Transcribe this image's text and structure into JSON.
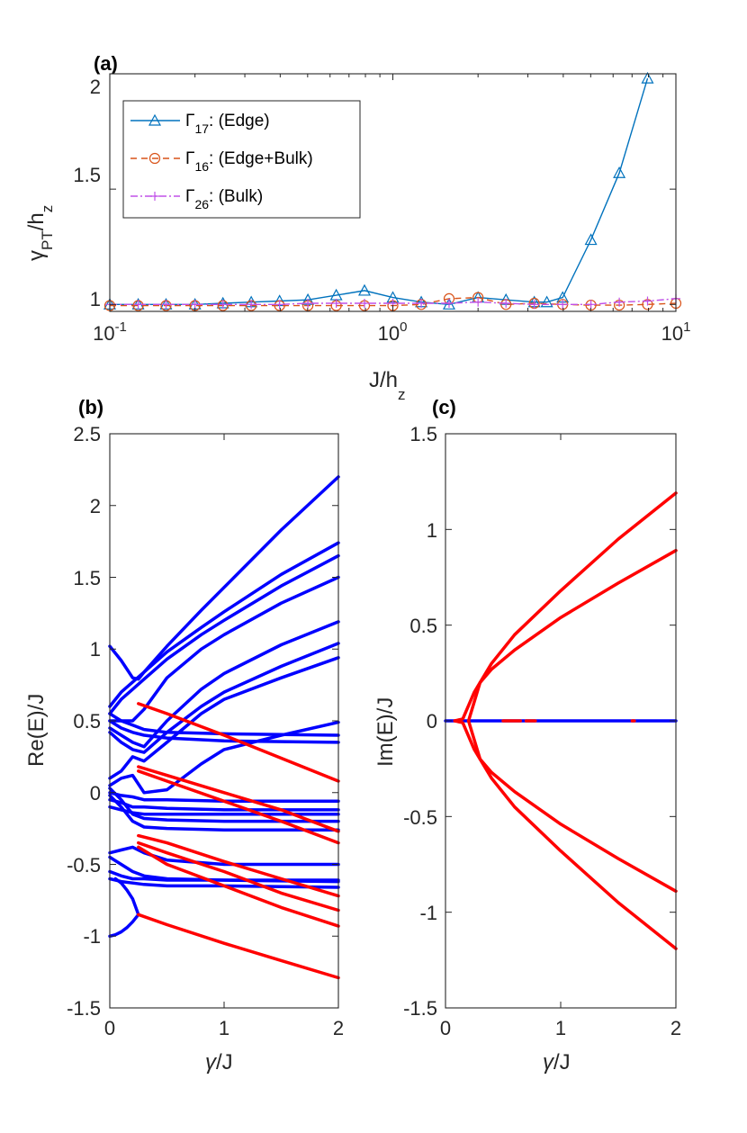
{
  "colors": {
    "blue_a": "#0072BD",
    "orange_a": "#D95319",
    "magenta_a": "#C050E8",
    "blue": "#0000FF",
    "red": "#FF0000",
    "axis": "#262626"
  },
  "chart_data": [
    {
      "panel": "(a)",
      "type": "line",
      "xscale": "log",
      "xlim": [
        0.1,
        10
      ],
      "ylim": [
        0.97,
        2.0
      ],
      "xticks": [
        0.1,
        1,
        10
      ],
      "xtick_labels": [
        {
          "base": "10",
          "exp": "-1"
        },
        {
          "base": "10",
          "exp": "0"
        },
        {
          "base": "10",
          "exp": "1"
        }
      ],
      "yticks": [
        1,
        1.5,
        2
      ],
      "ytick_labels": [
        "1",
        "1.5",
        "2"
      ],
      "xlabel": {
        "main": "J/h",
        "sub": "z"
      },
      "ylabel": {
        "greek": "γ",
        "sub": "PT",
        "main": "/h",
        "sub2": "z"
      },
      "legend_location": "top-left",
      "series": [
        {
          "name": "Γ17: (Edge)",
          "legend": {
            "greek": "Γ",
            "sub": "17",
            "text": ": (Edge)"
          },
          "color_key": "blue_a",
          "dash": "",
          "marker": "triangle",
          "x": [
            0.1,
            0.126,
            0.158,
            0.2,
            0.251,
            0.316,
            0.398,
            0.501,
            0.631,
            0.794,
            1.0,
            1.26,
            1.58,
            2.0,
            2.51,
            3.16,
            3.5,
            3.98,
            5.01,
            6.31,
            7.94
          ],
          "y": [
            1.0,
            1.0,
            1.0,
            1.0,
            1.005,
            1.01,
            1.015,
            1.02,
            1.04,
            1.06,
            1.03,
            1.01,
            1.0,
            1.03,
            1.02,
            1.01,
            1.01,
            1.03,
            1.28,
            1.57,
            1.98
          ]
        },
        {
          "name": "Γ16: (Edge+Bulk)",
          "legend": {
            "greek": "Γ",
            "sub": "16",
            "text": ": (Edge+Bulk)"
          },
          "color_key": "orange_a",
          "dash": "7,5",
          "marker": "circle",
          "x": [
            0.1,
            0.126,
            0.158,
            0.2,
            0.251,
            0.316,
            0.398,
            0.501,
            0.631,
            0.794,
            1.0,
            1.26,
            1.58,
            2.0,
            2.51,
            3.16,
            3.98,
            5.01,
            6.31,
            7.94,
            10
          ],
          "y": [
            0.995,
            0.995,
            0.995,
            0.995,
            0.995,
            0.995,
            0.995,
            0.995,
            0.995,
            0.995,
            0.995,
            1.0,
            1.025,
            1.03,
            1.0,
            1.005,
            1.0,
            0.997,
            0.997,
            1.0,
            1.005
          ]
        },
        {
          "name": "Γ26: (Bulk)",
          "legend": {
            "greek": "Γ",
            "sub": "26",
            "text": ": (Bulk)"
          },
          "color_key": "magenta_a",
          "dash": "8,3,2,3",
          "marker": "plus",
          "x": [
            0.1,
            0.126,
            0.158,
            0.2,
            0.251,
            0.316,
            0.398,
            0.501,
            0.631,
            0.794,
            1.0,
            1.26,
            1.58,
            2.0,
            2.51,
            3.16,
            3.98,
            5.01,
            6.31,
            7.94,
            10
          ],
          "y": [
            1.0,
            1.0,
            1.0,
            1.0,
            1.0,
            1.0,
            1.0,
            1.005,
            1.005,
            1.005,
            1.005,
            1.005,
            1.005,
            1.01,
            1.005,
            1.0,
            1.0,
            1.0,
            1.01,
            1.015,
            1.025
          ]
        }
      ]
    },
    {
      "panel": "(b)",
      "type": "line",
      "xlim": [
        0,
        2
      ],
      "ylim": [
        -1.5,
        2.5
      ],
      "xticks": [
        0,
        1,
        2
      ],
      "xtick_labels": [
        "0",
        "1",
        "2"
      ],
      "yticks": [
        -1.5,
        -1,
        -0.5,
        0,
        0.5,
        1,
        1.5,
        2,
        2.5
      ],
      "ytick_labels": [
        "-1.5",
        "-1",
        "-0.5",
        "0",
        "0.5",
        "1",
        "1.5",
        "2",
        "2.5"
      ],
      "xlabel": {
        "greek": "γ",
        "main": "/J"
      },
      "ylabel": "Re(E)/J",
      "series": [
        {
          "color_key": "blue",
          "x": [
            0,
            0.05,
            0.1,
            0.2,
            0.25,
            0.3,
            0.5,
            0.8,
            1.0,
            1.5,
            2.0
          ],
          "y": [
            1.02,
            0.97,
            0.92,
            0.8,
            0.79,
            0.84,
            1.02,
            1.27,
            1.43,
            1.83,
            2.2
          ]
        },
        {
          "color_key": "blue",
          "x": [
            0,
            0.1,
            0.2,
            0.3,
            0.5,
            0.8,
            1.0,
            1.5,
            2.0
          ],
          "y": [
            0.6,
            0.7,
            0.77,
            0.84,
            0.98,
            1.15,
            1.26,
            1.52,
            1.74
          ]
        },
        {
          "color_key": "blue",
          "x": [
            0,
            0.1,
            0.2,
            0.3,
            0.5,
            0.8,
            1.0,
            1.5,
            2.0
          ],
          "y": [
            0.55,
            0.65,
            0.72,
            0.79,
            0.93,
            1.1,
            1.2,
            1.44,
            1.65
          ]
        },
        {
          "color_key": "blue",
          "x": [
            0,
            0.1,
            0.2,
            0.3,
            0.5,
            0.8,
            1.0,
            1.5,
            2.0
          ],
          "y": [
            0.5,
            0.5,
            0.5,
            0.58,
            0.8,
            1.0,
            1.1,
            1.32,
            1.5
          ]
        },
        {
          "color_key": "blue",
          "x": [
            0,
            0.1,
            0.2,
            0.3,
            0.5,
            0.8,
            1.0,
            1.5,
            2.0
          ],
          "y": [
            0.45,
            0.4,
            0.35,
            0.32,
            0.5,
            0.72,
            0.83,
            1.03,
            1.19
          ]
        },
        {
          "color_key": "blue",
          "x": [
            0,
            0.1,
            0.2,
            0.3,
            0.5,
            0.8,
            1.0,
            1.5,
            2.0
          ],
          "y": [
            0.42,
            0.35,
            0.3,
            0.28,
            0.42,
            0.6,
            0.7,
            0.88,
            1.04
          ]
        },
        {
          "color_key": "blue",
          "x": [
            0,
            0.1,
            0.2,
            0.3,
            0.5,
            0.8,
            1.0,
            1.5,
            2.0
          ],
          "y": [
            0.1,
            0.15,
            0.25,
            0.22,
            0.35,
            0.55,
            0.65,
            0.8,
            0.94
          ]
        },
        {
          "color_key": "blue",
          "x": [
            0,
            0.1,
            0.2,
            0.3,
            0.5,
            0.8,
            1.0,
            1.5,
            2.0
          ],
          "y": [
            0.05,
            0.1,
            0.12,
            0.0,
            0.02,
            0.2,
            0.3,
            0.4,
            0.49
          ]
        },
        {
          "color_key": "blue",
          "x": [
            0,
            0.1,
            0.2,
            0.3,
            0.5,
            1.0,
            2.0
          ],
          "y": [
            0.55,
            0.5,
            0.47,
            0.44,
            0.42,
            0.41,
            0.4
          ]
        },
        {
          "color_key": "blue",
          "x": [
            0,
            0.1,
            0.2,
            0.3,
            0.5,
            1.0,
            2.0
          ],
          "y": [
            0.5,
            0.45,
            0.42,
            0.4,
            0.38,
            0.36,
            0.35
          ]
        },
        {
          "color_key": "blue",
          "x": [
            0,
            0.1,
            0.2,
            0.3,
            0.5,
            1.0,
            2.0
          ],
          "y": [
            0.0,
            -0.02,
            -0.03,
            -0.05,
            -0.05,
            -0.06,
            -0.06
          ]
        },
        {
          "color_key": "blue",
          "x": [
            0,
            0.1,
            0.2,
            0.3,
            0.5,
            1.0,
            2.0
          ],
          "y": [
            -0.05,
            -0.07,
            -0.1,
            -0.1,
            -0.11,
            -0.12,
            -0.12
          ]
        },
        {
          "color_key": "blue",
          "x": [
            0,
            0.1,
            0.2,
            0.3,
            0.5,
            1.0,
            2.0
          ],
          "y": [
            -0.1,
            -0.12,
            -0.14,
            -0.15,
            -0.15,
            -0.15,
            -0.15
          ]
        },
        {
          "color_key": "blue",
          "x": [
            0,
            0.1,
            0.2,
            0.3,
            0.5,
            1.0,
            2.0
          ],
          "y": [
            0.03,
            -0.05,
            -0.15,
            -0.18,
            -0.19,
            -0.2,
            -0.2
          ]
        },
        {
          "color_key": "blue",
          "x": [
            0,
            0.1,
            0.2,
            0.3,
            0.5,
            1.0,
            2.0
          ],
          "y": [
            -0.02,
            -0.1,
            -0.2,
            -0.24,
            -0.25,
            -0.26,
            -0.26
          ]
        },
        {
          "color_key": "blue",
          "x": [
            0,
            0.1,
            0.2,
            0.3,
            0.5,
            1.0,
            2.0
          ],
          "y": [
            -0.42,
            -0.4,
            -0.38,
            -0.42,
            -0.47,
            -0.5,
            -0.5
          ]
        },
        {
          "color_key": "blue",
          "x": [
            0,
            0.1,
            0.2,
            0.3,
            0.5,
            1.0,
            2.0
          ],
          "y": [
            -0.45,
            -0.5,
            -0.55,
            -0.58,
            -0.6,
            -0.61,
            -0.62
          ]
        },
        {
          "color_key": "blue",
          "x": [
            0,
            0.1,
            0.2,
            0.3,
            0.5,
            1.0,
            2.0
          ],
          "y": [
            -0.55,
            -0.58,
            -0.6,
            -0.6,
            -0.61,
            -0.61,
            -0.61
          ]
        },
        {
          "color_key": "blue",
          "x": [
            0,
            0.1,
            0.2,
            0.3,
            0.5,
            1.0,
            2.0
          ],
          "y": [
            -0.6,
            -0.62,
            -0.63,
            -0.64,
            -0.65,
            -0.65,
            -0.66
          ]
        },
        {
          "color_key": "blue",
          "x": [
            0,
            0.05,
            0.1,
            0.15,
            0.2,
            0.25
          ],
          "y": [
            -1.0,
            -0.99,
            -0.97,
            -0.94,
            -0.9,
            -0.85
          ]
        },
        {
          "color_key": "blue",
          "x": [
            0.05,
            0.1,
            0.15,
            0.2,
            0.25
          ],
          "y": [
            -0.6,
            -0.63,
            -0.68,
            -0.74,
            -0.85
          ]
        },
        {
          "color_key": "red",
          "x": [
            0.25,
            0.5,
            1.0,
            1.5,
            2.0
          ],
          "y": [
            -0.85,
            -0.92,
            -1.05,
            -1.17,
            -1.29
          ]
        },
        {
          "color_key": "red",
          "x": [
            0.25,
            0.5,
            1.0,
            1.5,
            2.0
          ],
          "y": [
            0.62,
            0.55,
            0.4,
            0.24,
            0.08
          ]
        },
        {
          "color_key": "red",
          "x": [
            0.25,
            0.5,
            1.0,
            1.5,
            2.0
          ],
          "y": [
            0.18,
            0.12,
            0.0,
            -0.12,
            -0.27
          ]
        },
        {
          "color_key": "red",
          "x": [
            0.25,
            0.5,
            1.0,
            1.5,
            2.0
          ],
          "y": [
            0.15,
            0.08,
            -0.06,
            -0.2,
            -0.35
          ]
        },
        {
          "color_key": "red",
          "x": [
            0.25,
            0.5,
            1.0,
            1.5,
            2.0
          ],
          "y": [
            -0.3,
            -0.35,
            -0.48,
            -0.6,
            -0.72
          ]
        },
        {
          "color_key": "red",
          "x": [
            0.25,
            0.5,
            1.0,
            1.5,
            2.0
          ],
          "y": [
            -0.35,
            -0.42,
            -0.55,
            -0.7,
            -0.82
          ]
        },
        {
          "color_key": "red",
          "x": [
            0.25,
            0.5,
            1.0,
            1.5,
            2.0
          ],
          "y": [
            -0.38,
            -0.5,
            -0.65,
            -0.8,
            -0.93
          ]
        }
      ]
    },
    {
      "panel": "(c)",
      "type": "line",
      "xlim": [
        0,
        2
      ],
      "ylim": [
        -1.5,
        1.5
      ],
      "xticks": [
        0,
        1,
        2
      ],
      "xtick_labels": [
        "0",
        "1",
        "2"
      ],
      "yticks": [
        -1.5,
        -1,
        -0.5,
        0,
        0.5,
        1,
        1.5
      ],
      "ytick_labels": [
        "-1.5",
        "-1",
        "-0.5",
        "0",
        "0.5",
        "1",
        "1.5"
      ],
      "xlabel": {
        "greek": "γ",
        "main": "/J"
      },
      "ylabel": "Im(E)/J",
      "series": [
        {
          "color_key": "blue",
          "x": [
            0,
            2
          ],
          "y": [
            0,
            0
          ]
        },
        {
          "color_key": "red",
          "x": [
            0.08,
            0.15,
            0.25,
            0.4,
            0.6,
            1.0,
            1.5,
            2.0
          ],
          "y": [
            0.0,
            0.01,
            0.15,
            0.3,
            0.45,
            0.68,
            0.95,
            1.19
          ]
        },
        {
          "color_key": "red",
          "x": [
            0.08,
            0.15,
            0.25,
            0.4,
            0.6,
            1.0,
            1.5,
            2.0
          ],
          "y": [
            0.0,
            -0.01,
            -0.15,
            -0.3,
            -0.45,
            -0.68,
            -0.95,
            -1.19
          ]
        },
        {
          "color_key": "red",
          "x": [
            0.2,
            0.25,
            0.3,
            0.4,
            0.6,
            1.0,
            1.5,
            2.0
          ],
          "y": [
            0.0,
            0.1,
            0.2,
            0.27,
            0.37,
            0.54,
            0.72,
            0.89
          ]
        },
        {
          "color_key": "red",
          "x": [
            0.2,
            0.25,
            0.3,
            0.4,
            0.6,
            1.0,
            1.5,
            2.0
          ],
          "y": [
            0.0,
            -0.1,
            -0.2,
            -0.27,
            -0.37,
            -0.54,
            -0.72,
            -0.89
          ]
        },
        {
          "color_key": "red",
          "x": [
            0.5,
            0.65
          ],
          "y": [
            0,
            0
          ]
        },
        {
          "color_key": "red",
          "x": [
            0.7,
            0.78
          ],
          "y": [
            0,
            0
          ]
        },
        {
          "color_key": "red",
          "x": [
            1.62,
            1.64
          ],
          "y": [
            0,
            0
          ]
        }
      ]
    }
  ]
}
